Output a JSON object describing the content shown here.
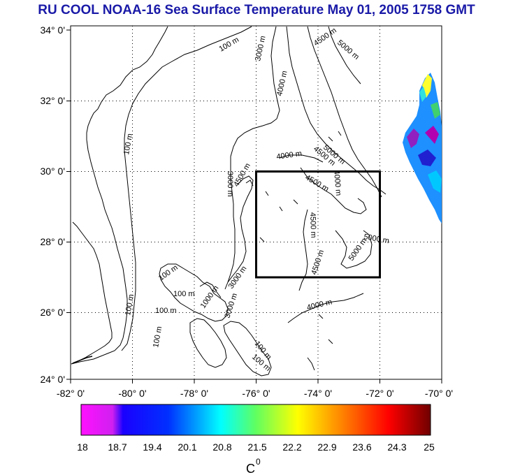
{
  "title": "RU COOL  NOAA-16 Sea Surface Temperature May 01, 2005 1758 GMT",
  "map": {
    "lat_ticks": [
      "34° 0'",
      "32° 0'",
      "30° 0'",
      "28° 0'",
      "26° 0'",
      "24° 0'"
    ],
    "lon_ticks": [
      "-82° 0'",
      "-80° 0'",
      "-78° 0'",
      "-76° 0'",
      "-74° 0'",
      "-72° 0'",
      "-70° 0'"
    ],
    "lon_range": [
      -82,
      -70
    ],
    "lat_range": [
      24,
      34
    ],
    "study_box": {
      "lon": [
        -76,
        -72
      ],
      "lat": [
        27,
        30
      ]
    },
    "contour_labels": [
      "100 m",
      "3000 m",
      "4000 m",
      "4500 m",
      "5000 m",
      "100 m",
      "3000 m",
      "4000 m",
      "4500 m",
      "5000 m",
      "4500 m",
      "4000 m",
      "4500 m",
      "4500 m",
      "5000 m",
      "5000 m",
      "100 m",
      "100 m",
      "1000 m",
      "4500 m",
      "3000 m",
      "100 m",
      "4000 m",
      "3000 m",
      "100 m",
      "100 m",
      "100 m",
      "100 m"
    ]
  },
  "colorbar": {
    "labels": [
      "18",
      "18.7",
      "19.4",
      "20.1",
      "20.8",
      "21.5",
      "22.2",
      "22.9",
      "23.6",
      "24.3",
      "25"
    ],
    "unit": "C",
    "unit_sup": "0",
    "colors": [
      "#ff00ff",
      "#0000ff",
      "#00ffff",
      "#ffff00",
      "#ff0000",
      "#800000"
    ]
  }
}
